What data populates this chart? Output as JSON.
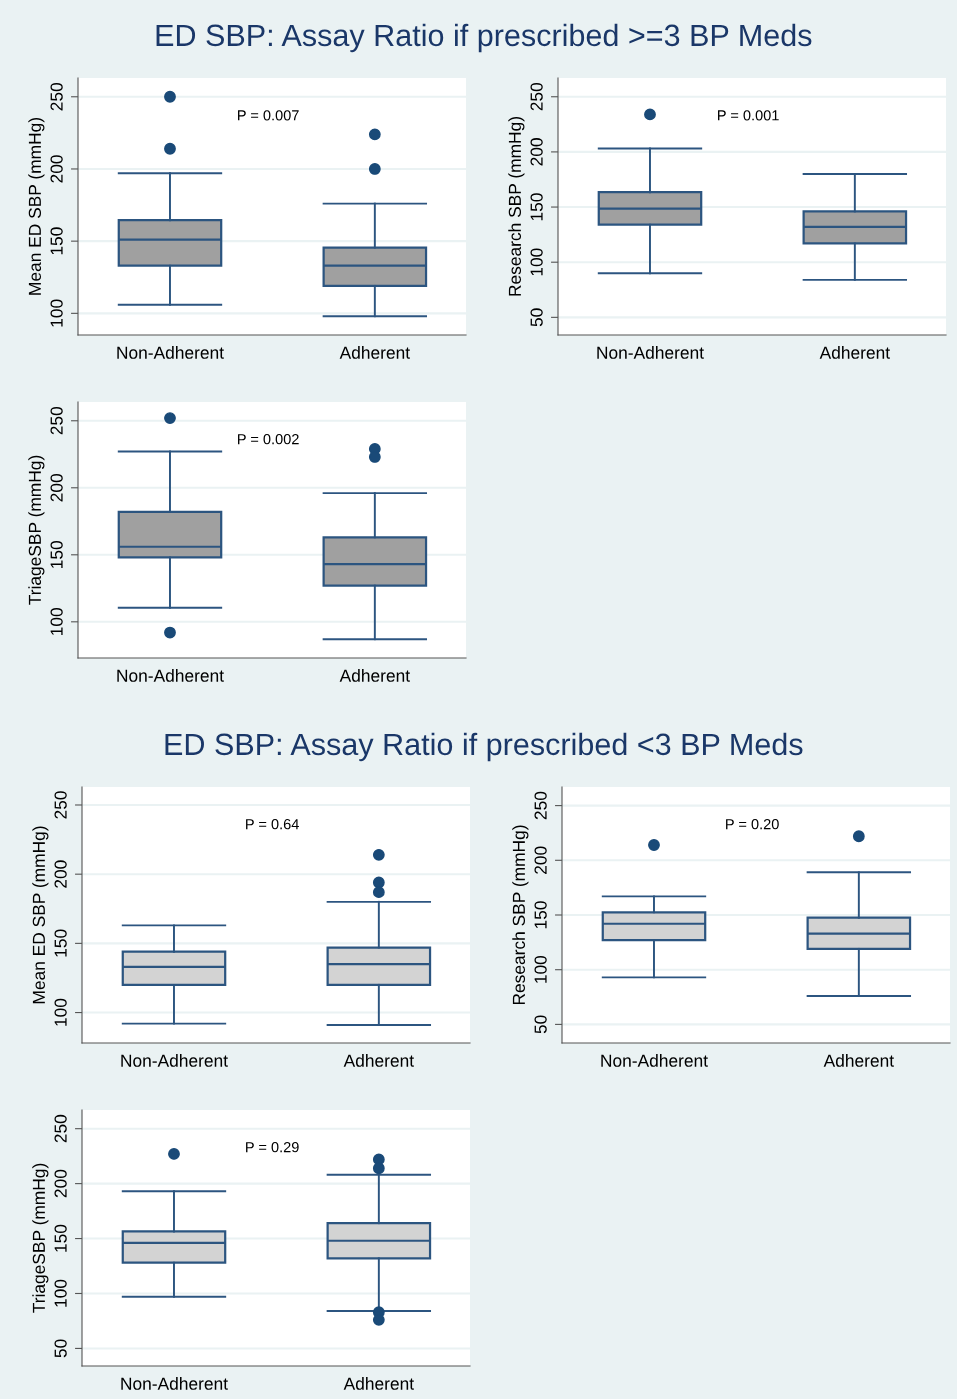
{
  "chart_data": [
    {
      "type": "box",
      "title": "ED SBP: Assay Ratio if prescribed >=3 BP Meds",
      "ylabel": "Mean ED SBP (mmHg)",
      "categories": [
        "Non-Adherent",
        "Adherent"
      ],
      "ylim": [
        85,
        263
      ],
      "yticks": [
        100,
        150,
        200,
        250
      ],
      "grid": "y",
      "annotations": [
        "P = 0.007"
      ],
      "series": [
        {
          "color": "#a0a0a0",
          "boxes": [
            {
              "low": 106,
              "q1": 133,
              "median": 151,
              "q3": 164.5,
              "high": 197,
              "outliers": [
                250,
                214
              ]
            },
            {
              "low": 98,
              "q1": 119,
              "median": 133,
              "q3": 145.5,
              "high": 176,
              "outliers": [
                224,
                200
              ]
            }
          ]
        }
      ]
    },
    {
      "type": "box",
      "ylabel": "Research SBP (mmHg)",
      "categories": [
        "Non-Adherent",
        "Adherent"
      ],
      "ylim": [
        34,
        267
      ],
      "yticks": [
        50,
        100,
        150,
        200,
        250
      ],
      "grid": "y",
      "annotations": [
        "P = 0.001"
      ],
      "series": [
        {
          "color": "#a0a0a0",
          "boxes": [
            {
              "low": 90,
              "q1": 134,
              "median": 148.5,
              "q3": 163.5,
              "high": 203,
              "outliers": [
                234
              ]
            },
            {
              "low": 84,
              "q1": 117,
              "median": 132,
              "q3": 146,
              "high": 180
            }
          ]
        }
      ]
    },
    {
      "type": "box",
      "ylabel": "TriageSBP (mmHg)",
      "categories": [
        "Non-Adherent",
        "Adherent"
      ],
      "ylim": [
        73,
        264
      ],
      "yticks": [
        100,
        150,
        200,
        250
      ],
      "grid": "y",
      "annotations": [
        "P = 0.002"
      ],
      "series": [
        {
          "color": "#a0a0a0",
          "boxes": [
            {
              "low": 110.5,
              "q1": 148,
              "median": 156,
              "q3": 182,
              "high": 227,
              "outliers": [
                252,
                92
              ]
            },
            {
              "low": 87,
              "q1": 127,
              "median": 143,
              "q3": 163,
              "high": 196,
              "outliers": [
                229,
                223
              ]
            }
          ]
        }
      ]
    },
    {
      "type": "box",
      "title": "ED SBP: Assay Ratio if prescribed <3 BP Meds",
      "ylabel": "Mean ED SBP (mmHg)",
      "categories": [
        "Non-Adherent",
        "Adherent"
      ],
      "ylim": [
        78,
        263
      ],
      "yticks": [
        100,
        150,
        200,
        250
      ],
      "grid": "y",
      "annotations": [
        "P = 0.64"
      ],
      "series": [
        {
          "color": "#d3d3d3",
          "boxes": [
            {
              "low": 92,
              "q1": 120,
              "median": 133,
              "q3": 144,
              "high": 163
            },
            {
              "low": 91,
              "q1": 120,
              "median": 135,
              "q3": 147,
              "high": 180,
              "outliers": [
                214,
                194,
                187
              ]
            }
          ]
        }
      ]
    },
    {
      "type": "box",
      "ylabel": "Research SBP (mmHg)",
      "categories": [
        "Non-Adherent",
        "Adherent"
      ],
      "ylim": [
        33,
        267
      ],
      "yticks": [
        50,
        100,
        150,
        200,
        250
      ],
      "grid": "y",
      "annotations": [
        "P = 0.20"
      ],
      "series": [
        {
          "color": "#d3d3d3",
          "boxes": [
            {
              "low": 93,
              "q1": 127,
              "median": 142,
              "q3": 152.5,
              "high": 167,
              "outliers": [
                214
              ]
            },
            {
              "low": 76,
              "q1": 119,
              "median": 133,
              "q3": 147.5,
              "high": 189,
              "outliers": [
                222
              ]
            }
          ]
        }
      ]
    },
    {
      "type": "box",
      "ylabel": "TriageSBP (mmHg)",
      "categories": [
        "Non-Adherent",
        "Adherent"
      ],
      "ylim": [
        34,
        267
      ],
      "yticks": [
        50,
        100,
        150,
        200,
        250
      ],
      "grid": "y",
      "annotations": [
        "P = 0.29"
      ],
      "series": [
        {
          "color": "#d3d3d3",
          "boxes": [
            {
              "low": 97,
              "q1": 128,
              "median": 146,
              "q3": 156.5,
              "high": 193,
              "outliers": [
                227
              ]
            },
            {
              "low": 84,
              "q1": 132,
              "median": 148,
              "q3": 164,
              "high": 208,
              "outliers": [
                222,
                214,
                83,
                76
              ]
            }
          ]
        }
      ]
    }
  ]
}
